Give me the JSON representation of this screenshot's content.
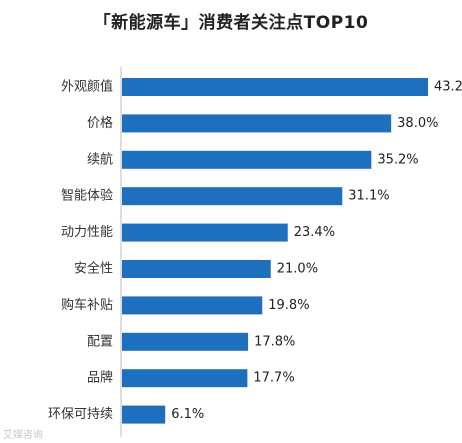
{
  "chart_data": {
    "type": "bar",
    "orientation": "horizontal",
    "title": "「新能源车」消费者关注点TOP10",
    "categories": [
      "外观颜值",
      "价格",
      "续航",
      "智能体验",
      "动力性能",
      "安全性",
      "购车补贴",
      "配置",
      "品牌",
      "环保可持续"
    ],
    "values": [
      43.2,
      38.0,
      35.2,
      31.1,
      23.4,
      21.0,
      19.8,
      17.8,
      17.7,
      6.1
    ],
    "data_labels": [
      "43.2%",
      "38.0%",
      "35.2%",
      "31.1%",
      "23.4%",
      "21.0%",
      "19.8%",
      "17.8%",
      "17.7%",
      "6.1%"
    ],
    "value_unit": "%",
    "xlim": [
      0,
      48
    ],
    "grid": false,
    "bar_color": "#1f6fbf",
    "axis_color": "#bdbdbd"
  },
  "watermark": "艾媒咨询"
}
